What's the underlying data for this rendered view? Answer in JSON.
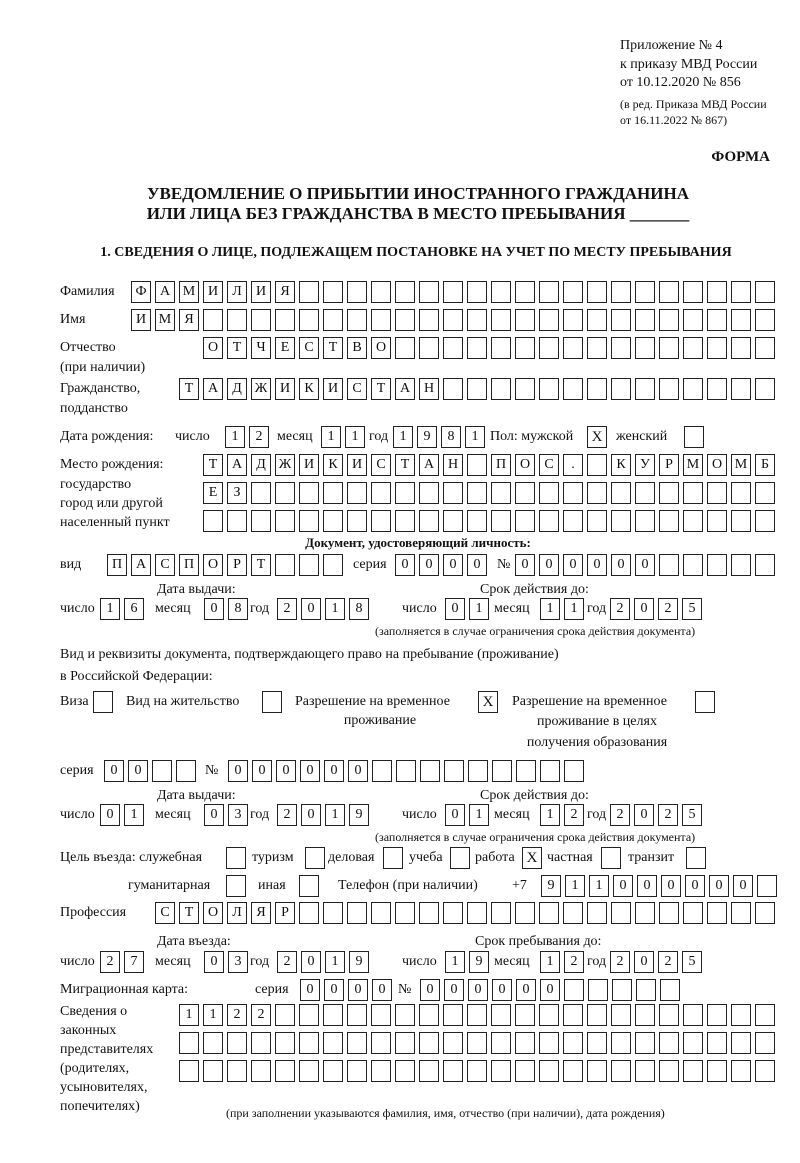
{
  "header": {
    "appendix": "Приложение № 4",
    "order": "к приказу МВД России",
    "order_date": "от 10.12.2020 № 856",
    "edition": "(в ред. Приказа МВД России",
    "edition_date": "от 16.11.2022 № 867)",
    "form": "ФОРМА",
    "title1": "УВЕДОМЛЕНИЕ О ПРИБЫТИИ ИНОСТРАННОГО ГРАЖДАНИНА",
    "title2": "ИЛИ ЛИЦА БЕЗ ГРАЖДАНСТВА В МЕСТО ПРЕБЫВАНИЯ _______",
    "section1": "1. СВЕДЕНИЯ О ЛИЦЕ, ПОДЛЕЖАЩЕМ ПОСТАНОВКЕ НА УЧЕТ ПО МЕСТУ ПРЕБЫВАНИЯ"
  },
  "labels": {
    "surname": "Фамилия",
    "name": "Имя",
    "patronymic": "Отчество",
    "patronymic2": "(при наличии)",
    "citizenship": "Гражданство,",
    "citizenship2": "подданство",
    "birth_date": "Дата рождения:",
    "day": "число",
    "month": "месяц",
    "year": "год",
    "sex": "Пол: мужской",
    "female": "женский",
    "birthplace": "Место рождения:",
    "birthplace2": "государство",
    "birthplace3": "город или другой",
    "birthplace4": "населенный пункт",
    "id_doc": "Документ, удостоверяющий личность:",
    "kind": "вид",
    "series": "серия",
    "number": "№",
    "issue_date": "Дата выдачи:",
    "valid_until": "Срок действия до:",
    "validity_note": "(заполняется в случае ограничения срока действия документа)",
    "stay_doc": "Вид и реквизиты документа, подтверждающего право на пребывание (проживание)",
    "stay_doc2": "в Российской Федерации:",
    "visa": "Виза",
    "residence": "Вид на жительство",
    "trp": "Разрешение на временное",
    "trp2": "проживание",
    "trp_edu": "Разрешение на временное",
    "trp_edu2": "проживание в целях",
    "trp_edu3": "получения образования",
    "purpose": "Цель въезда: служебная",
    "tourism": "туризм",
    "business": "деловая",
    "study": "учеба",
    "work": "работа",
    "private": "частная",
    "transit": "транзит",
    "humanitarian": "гуманитарная",
    "other": "иная",
    "phone": "Телефон (при наличии)",
    "phone_prefix": "+7",
    "profession": "Профессия",
    "entry_date": "Дата въезда:",
    "stay_until": "Срок пребывания до:",
    "migration_card": "Миграционная карта:",
    "reps1": "Сведения о",
    "reps2": "законных",
    "reps3": "представителях",
    "reps4": "(родителях,",
    "reps5": "усыновителях,",
    "reps6": "попечителях)",
    "reps_note": "(при заполнении указываются фамилия, имя, отчество (при наличии), дата рождения)"
  },
  "person": {
    "surname": "ФАМИЛИЯ",
    "name": "ИМЯ",
    "patronymic": "ОТЧЕСТВО",
    "citizenship": "ТАДЖИКИСТАН",
    "birth": {
      "day": "12",
      "month": "11",
      "year": "1981"
    },
    "sex_male": "X",
    "sex_female": "",
    "birthplace": [
      "ТАДЖИКИСТАН ПОС. КУРМОМБ",
      "ЕЗ",
      ""
    ]
  },
  "id_document": {
    "kind": "ПАСПОРТ",
    "series": "0000",
    "number": "000000",
    "issue": {
      "day": "16",
      "month": "08",
      "year": "2018"
    },
    "valid": {
      "day": "01",
      "month": "11",
      "year": "2025"
    }
  },
  "stay_document": {
    "visa": "",
    "residence": "",
    "trp": "X",
    "trp_edu": "",
    "series": "00",
    "number": "000000",
    "issue": {
      "day": "01",
      "month": "03",
      "year": "2019"
    },
    "valid": {
      "day": "01",
      "month": "12",
      "year": "2025"
    }
  },
  "purpose": {
    "official": "",
    "tourism": "",
    "business": "",
    "study": "",
    "work": "X",
    "private": "",
    "transit": "",
    "humanitarian": "",
    "other": ""
  },
  "phone": "911000000",
  "profession": "СТОЛЯР",
  "entry": {
    "day": "27",
    "month": "03",
    "year": "2019"
  },
  "stay_until": {
    "day": "19",
    "month": "12",
    "year": "2025"
  },
  "migration_card": {
    "series": "0000",
    "number": "000000"
  },
  "representatives": [
    "1122",
    "",
    ""
  ]
}
